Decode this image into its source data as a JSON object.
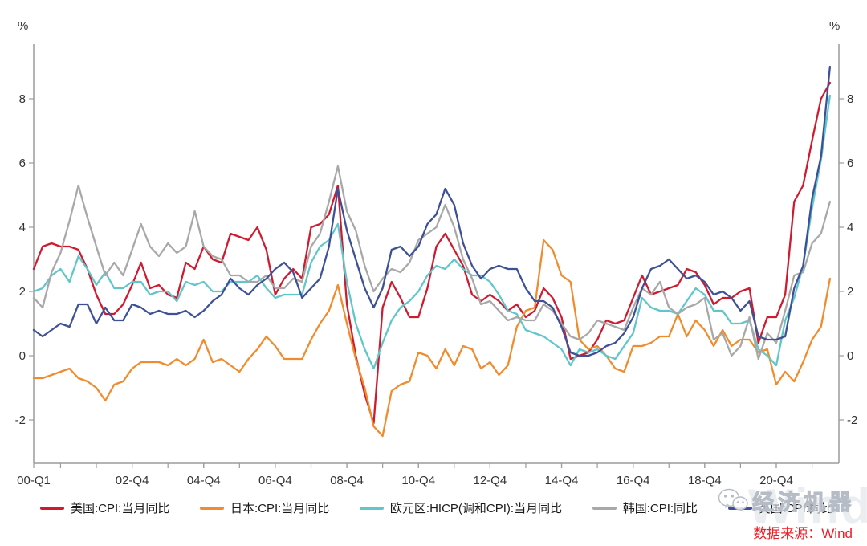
{
  "axes": {
    "left_unit": "%",
    "right_unit": "%"
  },
  "source_note": "数据来源：Wind",
  "watermark": {
    "text": "经济机器",
    "brand": "Wind"
  },
  "chart_data": {
    "type": "line",
    "title": "",
    "xlabel": "",
    "ylabel": "%",
    "grid": false,
    "legend_position": "bottom",
    "x_unit": "quarter-index from 2000-Q1 (one point per quarter)",
    "xlim": [
      0,
      90
    ],
    "ylim": [
      -3.35,
      9.7
    ],
    "y_ticks": [
      -2,
      0,
      2,
      4,
      6,
      8
    ],
    "x_minor_tick_start": 3,
    "x_minor_tick_step": 4,
    "x_ticks": [
      {
        "pos": 0,
        "label": "00-Q1"
      },
      {
        "pos": 11,
        "label": "02-Q4"
      },
      {
        "pos": 19,
        "label": "04-Q4"
      },
      {
        "pos": 27,
        "label": "06-Q4"
      },
      {
        "pos": 35,
        "label": "08-Q4"
      },
      {
        "pos": 43,
        "label": "10-Q4"
      },
      {
        "pos": 51,
        "label": "12-Q4"
      },
      {
        "pos": 59,
        "label": "14-Q4"
      },
      {
        "pos": 67,
        "label": "16-Q4"
      },
      {
        "pos": 75,
        "label": "18-Q4"
      },
      {
        "pos": 83,
        "label": "20-Q4"
      }
    ],
    "axis_color": "#9b9b9b",
    "tick_label_color": "#333333",
    "series": [
      {
        "name": "美国:CPI:当月同比",
        "color": "#cf1b2f",
        "values": [
          2.7,
          3.4,
          3.5,
          3.4,
          3.4,
          3.3,
          2.7,
          1.9,
          1.3,
          1.3,
          1.6,
          2.2,
          2.9,
          2.1,
          2.2,
          1.9,
          1.8,
          2.9,
          2.7,
          3.4,
          3.0,
          2.9,
          3.8,
          3.7,
          3.6,
          4.0,
          3.3,
          1.9,
          2.4,
          2.7,
          2.4,
          4.0,
          4.1,
          4.4,
          5.3,
          1.6,
          0.0,
          -1.2,
          -2.1,
          1.5,
          2.3,
          1.8,
          1.2,
          1.2,
          2.1,
          3.4,
          3.8,
          3.3,
          2.8,
          1.9,
          1.7,
          1.9,
          1.7,
          1.4,
          1.6,
          1.2,
          1.4,
          2.1,
          1.8,
          1.2,
          -0.1,
          0.0,
          0.1,
          0.5,
          1.1,
          1.0,
          1.1,
          1.8,
          2.5,
          1.9,
          2.0,
          2.1,
          2.2,
          2.7,
          2.6,
          2.2,
          1.6,
          1.8,
          1.8,
          2.0,
          2.1,
          0.4,
          1.2,
          1.2,
          1.9,
          4.8,
          5.3,
          6.7,
          8.0,
          8.5
        ]
      },
      {
        "name": "日本:CPI:当月同比",
        "color": "#f08c2d",
        "values": [
          -0.7,
          -0.7,
          -0.6,
          -0.5,
          -0.4,
          -0.7,
          -0.8,
          -1.0,
          -1.4,
          -0.9,
          -0.8,
          -0.4,
          -0.2,
          -0.2,
          -0.2,
          -0.3,
          -0.1,
          -0.3,
          -0.1,
          0.5,
          -0.2,
          -0.1,
          -0.3,
          -0.5,
          -0.1,
          0.2,
          0.6,
          0.3,
          -0.1,
          -0.1,
          -0.1,
          0.5,
          1.0,
          1.4,
          2.2,
          1.0,
          -0.1,
          -1.0,
          -2.2,
          -2.5,
          -1.1,
          -0.9,
          -0.8,
          0.1,
          0.0,
          -0.4,
          0.2,
          -0.3,
          0.3,
          0.2,
          -0.4,
          -0.2,
          -0.6,
          -0.3,
          0.9,
          1.4,
          1.5,
          3.6,
          3.3,
          2.5,
          2.3,
          0.5,
          0.2,
          0.3,
          0.0,
          -0.4,
          -0.5,
          0.3,
          0.3,
          0.4,
          0.6,
          0.6,
          1.3,
          0.6,
          1.1,
          0.8,
          0.3,
          0.8,
          0.3,
          0.5,
          0.5,
          0.1,
          0.2,
          -0.9,
          -0.5,
          -0.8,
          -0.2,
          0.5,
          0.9,
          2.4
        ]
      },
      {
        "name": "欧元区:HICP(调和CPI):当月同比",
        "color": "#5fc6cb",
        "values": [
          2.0,
          2.1,
          2.5,
          2.7,
          2.3,
          3.1,
          2.7,
          2.2,
          2.6,
          2.1,
          2.1,
          2.3,
          2.3,
          1.9,
          2.0,
          2.0,
          1.7,
          2.3,
          2.2,
          2.3,
          2.0,
          2.0,
          2.3,
          2.3,
          2.3,
          2.5,
          2.1,
          1.8,
          1.9,
          1.9,
          1.9,
          2.9,
          3.4,
          3.6,
          4.1,
          2.3,
          1.0,
          0.2,
          -0.4,
          0.4,
          1.1,
          1.5,
          1.7,
          2.0,
          2.5,
          2.8,
          2.7,
          3.0,
          2.7,
          2.5,
          2.5,
          2.3,
          1.9,
          1.4,
          1.3,
          0.8,
          0.7,
          0.6,
          0.4,
          0.2,
          -0.3,
          0.2,
          0.1,
          0.2,
          0.0,
          -0.1,
          0.3,
          0.7,
          1.8,
          1.5,
          1.4,
          1.4,
          1.3,
          1.7,
          2.1,
          1.9,
          1.4,
          1.4,
          1.0,
          1.0,
          1.1,
          0.2,
          0.0,
          -0.3,
          1.1,
          1.8,
          2.8,
          4.6,
          6.1,
          8.1
        ]
      },
      {
        "name": "韩国:CPI:同比",
        "color": "#a8a8a8",
        "values": [
          1.8,
          1.5,
          2.6,
          3.2,
          4.2,
          5.3,
          4.3,
          3.4,
          2.5,
          2.9,
          2.5,
          3.3,
          4.1,
          3.4,
          3.1,
          3.5,
          3.2,
          3.4,
          4.5,
          3.4,
          3.1,
          3.0,
          2.5,
          2.5,
          2.3,
          2.3,
          2.5,
          2.1,
          2.1,
          2.4,
          2.3,
          3.4,
          3.8,
          4.8,
          5.9,
          4.5,
          3.9,
          2.8,
          2.0,
          2.4,
          2.7,
          2.6,
          2.9,
          3.6,
          3.8,
          4.0,
          4.7,
          4.0,
          3.0,
          2.4,
          1.6,
          1.7,
          1.4,
          1.1,
          1.2,
          1.1,
          1.1,
          1.6,
          1.4,
          1.0,
          0.6,
          0.5,
          0.7,
          1.1,
          1.0,
          0.9,
          0.8,
          1.5,
          2.1,
          1.9,
          2.3,
          1.5,
          1.3,
          1.5,
          1.6,
          1.8,
          0.5,
          0.7,
          0.0,
          0.3,
          1.2,
          -0.1,
          0.7,
          0.4,
          1.4,
          2.5,
          2.6,
          3.5,
          3.8,
          4.8
        ]
      },
      {
        "name": "英国:CPI:同比",
        "color": "#3e5196",
        "values": [
          0.8,
          0.6,
          0.8,
          1.0,
          0.9,
          1.6,
          1.6,
          1.0,
          1.5,
          1.1,
          1.1,
          1.6,
          1.5,
          1.3,
          1.4,
          1.3,
          1.3,
          1.4,
          1.2,
          1.4,
          1.7,
          1.9,
          2.4,
          2.1,
          1.9,
          2.2,
          2.4,
          2.7,
          2.9,
          2.6,
          1.8,
          2.1,
          2.4,
          3.4,
          5.2,
          3.9,
          3.0,
          2.1,
          1.5,
          2.1,
          3.3,
          3.4,
          3.1,
          3.4,
          4.1,
          4.4,
          5.2,
          4.7,
          3.5,
          2.8,
          2.4,
          2.7,
          2.8,
          2.7,
          2.7,
          2.1,
          1.7,
          1.7,
          1.5,
          0.9,
          0.1,
          0.0,
          0.0,
          0.1,
          0.3,
          0.4,
          0.7,
          1.2,
          2.1,
          2.7,
          2.8,
          3.0,
          2.7,
          2.4,
          2.5,
          2.3,
          1.9,
          2.0,
          1.8,
          1.4,
          1.7,
          0.6,
          0.5,
          0.5,
          0.6,
          2.1,
          2.8,
          4.9,
          6.2,
          9.0
        ]
      }
    ]
  }
}
